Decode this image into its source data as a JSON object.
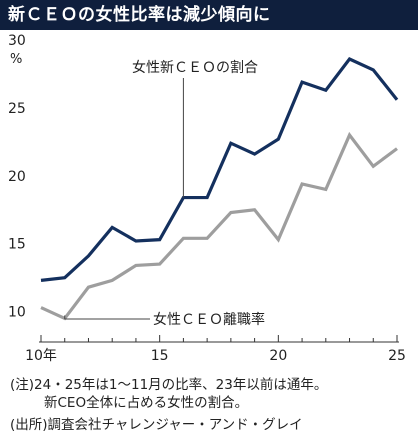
{
  "title": "新ＣＥＯの女性比率は減少傾向に",
  "chart_data": {
    "type": "line",
    "x": [
      2010,
      2011,
      2012,
      2013,
      2014,
      2015,
      2016,
      2017,
      2018,
      2019,
      2020,
      2021,
      2022,
      2023,
      2024,
      2025
    ],
    "x_tick_labels": [
      "10年",
      "15",
      "20",
      "25"
    ],
    "x_ticks": [
      2010,
      2015,
      2020,
      2025
    ],
    "ylim": [
      8.5,
      30
    ],
    "y_ticks": [
      10,
      15,
      20,
      25,
      30
    ],
    "y_unit": "%",
    "grid": false,
    "series": [
      {
        "name": "女性新ＣＥＯの割合",
        "color": "#14305e",
        "values": [
          12.3,
          12.5,
          14.1,
          16.2,
          15.2,
          15.3,
          18.4,
          18.4,
          22.4,
          21.6,
          22.7,
          26.9,
          26.3,
          28.6,
          27.8,
          25.6
        ]
      },
      {
        "name": "女性ＣＥＯ離職率",
        "color": "#9e9e9e",
        "values": [
          10.3,
          9.5,
          11.8,
          12.3,
          13.4,
          13.5,
          15.4,
          15.4,
          17.3,
          17.5,
          15.3,
          19.4,
          19.0,
          23.0,
          20.7,
          22.0
        ]
      }
    ]
  },
  "notes": {
    "line1": "(注)24・25年は1〜11月の比率、23年以前は通年。",
    "line2": "新CEO全体に占める女性の割合。",
    "source": "(出所)調査会社チャレンジャー・アンド・グレイ"
  }
}
